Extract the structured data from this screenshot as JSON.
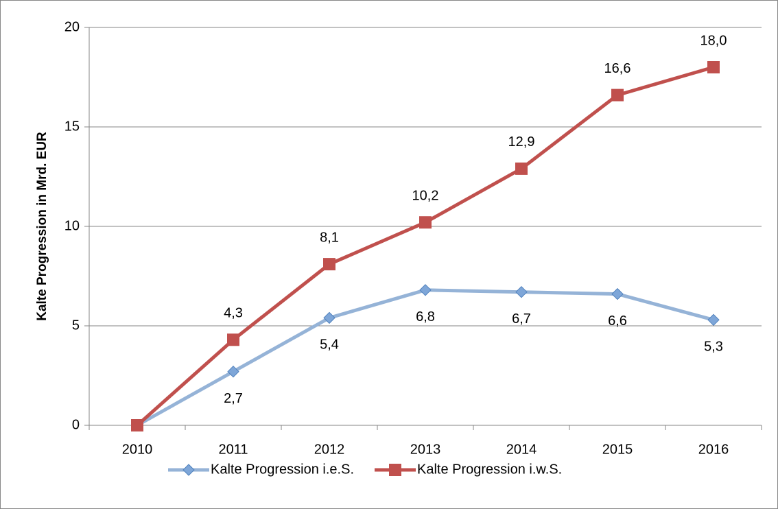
{
  "chart_data": {
    "type": "line",
    "y_label": "Kalte Progression in Mrd. EUR",
    "categories": [
      "2010",
      "2011",
      "2012",
      "2013",
      "2014",
      "2015",
      "2016"
    ],
    "series": [
      {
        "name": "Kalte Progression i.e.S.",
        "color": "#95b3d7",
        "marker": "diamond",
        "label_position": "below",
        "values": [
          0,
          2.7,
          5.4,
          6.8,
          6.7,
          6.6,
          5.3
        ],
        "value_labels": [
          null,
          "2,7",
          "5,4",
          "6,8",
          "6,7",
          "6,6",
          "5,3"
        ]
      },
      {
        "name": "Kalte Progression i.w.S.",
        "color": "#c0504d",
        "marker": "square",
        "label_position": "above",
        "values": [
          0,
          4.3,
          8.1,
          10.2,
          12.9,
          16.6,
          18.0
        ],
        "value_labels": [
          null,
          "4,3",
          "8,1",
          "10,2",
          "12,9",
          "16,6",
          "18,0"
        ]
      }
    ],
    "ylim": [
      0,
      20
    ],
    "yticks": [
      0,
      5,
      10,
      15,
      20
    ],
    "grid": true,
    "legend": "bottom"
  }
}
